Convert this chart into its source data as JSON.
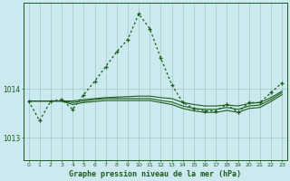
{
  "title": "Graphe pression niveau de la mer (hPa)",
  "background_color": "#cce9f0",
  "grid_color": "#99ccbb",
  "line_color": "#1a5c1a",
  "xlim": [
    -0.5,
    23.5
  ],
  "ylim": [
    1012.55,
    1015.75
  ],
  "yticks": [
    1013,
    1014
  ],
  "xticks": [
    0,
    1,
    2,
    3,
    4,
    5,
    6,
    7,
    8,
    9,
    10,
    11,
    12,
    13,
    14,
    15,
    16,
    17,
    18,
    19,
    20,
    21,
    22,
    23
  ],
  "series_main": [
    1013.75,
    1013.35,
    1013.75,
    1013.78,
    1013.58,
    1013.88,
    1014.15,
    1014.45,
    1014.75,
    1015.0,
    1015.52,
    1015.22,
    1014.62,
    1014.08,
    1013.72,
    1013.6,
    1013.55,
    1013.55,
    1013.68,
    1013.52,
    1013.72,
    1013.72,
    1013.92,
    1014.12
  ],
  "series_flat1": [
    1013.75,
    1013.75,
    1013.75,
    1013.75,
    1013.75,
    1013.78,
    1013.8,
    1013.82,
    1013.83,
    1013.84,
    1013.85,
    1013.85,
    1013.82,
    1013.8,
    1013.72,
    1013.68,
    1013.65,
    1013.65,
    1013.67,
    1013.65,
    1013.7,
    1013.72,
    1013.82,
    1013.95
  ],
  "series_flat2": [
    1013.75,
    1013.75,
    1013.75,
    1013.75,
    1013.72,
    1013.75,
    1013.78,
    1013.8,
    1013.8,
    1013.8,
    1013.8,
    1013.8,
    1013.76,
    1013.73,
    1013.65,
    1013.6,
    1013.58,
    1013.58,
    1013.62,
    1013.58,
    1013.65,
    1013.67,
    1013.78,
    1013.92
  ],
  "series_flat3": [
    1013.75,
    1013.75,
    1013.75,
    1013.75,
    1013.68,
    1013.72,
    1013.74,
    1013.76,
    1013.76,
    1013.76,
    1013.76,
    1013.76,
    1013.72,
    1013.68,
    1013.6,
    1013.55,
    1013.52,
    1013.52,
    1013.56,
    1013.52,
    1013.6,
    1013.62,
    1013.74,
    1013.88
  ]
}
